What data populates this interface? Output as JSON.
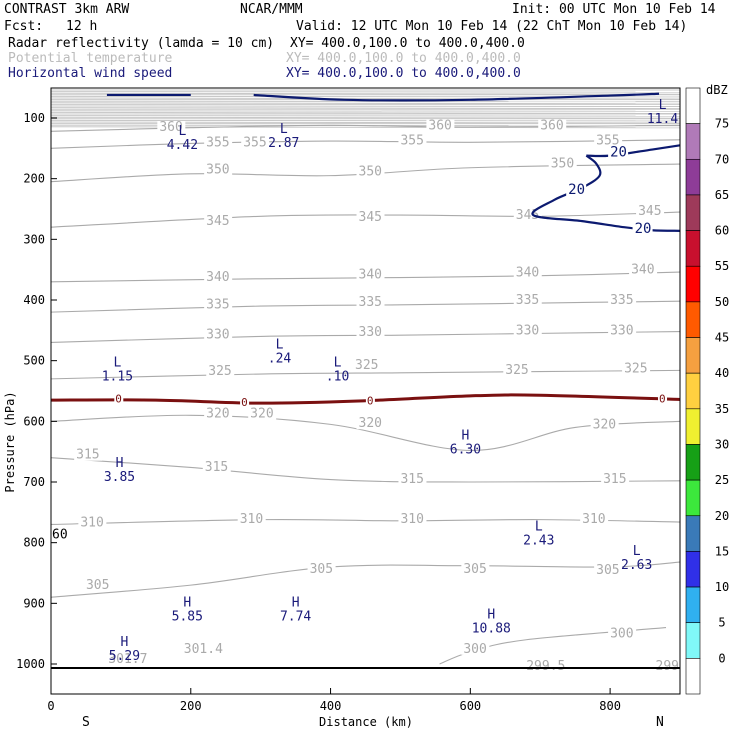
{
  "header": {
    "model": "CONTRAST  3km ARW",
    "center": "NCAR/MMM",
    "init": "Init: 00 UTC Mon 10 Feb 14",
    "fcst_label": "Fcst:",
    "fcst_value": "12 h",
    "valid": "Valid: 12 UTC Mon 10 Feb 14 (22 ChT Mon 10 Feb 14)"
  },
  "fields": [
    {
      "name": "Radar reflectivity (lamda = 10 cm)",
      "xy": "XY= 400.0,100.0 to 400.0,400.0",
      "color": "#000000"
    },
    {
      "name": "Potential temperature",
      "xy": "XY= 400.0,100.0 to 400.0,400.0",
      "color": "#bbbbbb"
    },
    {
      "name": "Horizontal wind speed",
      "xy": "XY= 400.0,100.0 to 400.0,400.0",
      "color": "#1a1a7a"
    }
  ],
  "colors": {
    "theta": "#aaaaaa",
    "wind": "#0c1a70",
    "zeroline": "#7a1010",
    "extrema": "#1a1a7a"
  },
  "chart_data": {
    "type": "contour_cross_section",
    "xlabel": "Distance (km)",
    "ylabel": "Pressure (hPa)",
    "xlim": [
      0,
      900
    ],
    "ylim": [
      1040,
      50
    ],
    "x_ticks": [
      0,
      200,
      400,
      600,
      800
    ],
    "y_ticks": [
      100,
      200,
      300,
      400,
      500,
      600,
      700,
      800,
      900,
      1000
    ],
    "endpoint_left": "S",
    "endpoint_right": "N",
    "colorbar": {
      "title": "dBZ",
      "levels": [
        75,
        70,
        65,
        60,
        55,
        50,
        45,
        40,
        35,
        30,
        25,
        20,
        15,
        10,
        5,
        0
      ],
      "colors": [
        "#ffffff",
        "#b07ab8",
        "#8e3c98",
        "#9e3a5a",
        "#c8102e",
        "#ff0000",
        "#ff5a00",
        "#f5a040",
        "#ffd040",
        "#f0f030",
        "#16a016",
        "#3ce83c",
        "#3a7ab8",
        "#3030e8",
        "#30b0f0",
        "#80f8f8",
        "#ffffff"
      ]
    },
    "theta_contours": [
      {
        "value": "300",
        "points": [
          [
            556,
            1000
          ],
          [
            600,
            980
          ],
          [
            680,
            960
          ],
          [
            880,
            940
          ]
        ]
      },
      {
        "value": "305",
        "points": [
          [
            0,
            890
          ],
          [
            200,
            870
          ],
          [
            400,
            840
          ],
          [
            600,
            838
          ],
          [
            800,
            840
          ],
          [
            900,
            832
          ]
        ]
      },
      {
        "value": "310",
        "points": [
          [
            0,
            770
          ],
          [
            300,
            762
          ],
          [
            500,
            764
          ],
          [
            700,
            762
          ],
          [
            900,
            766
          ]
        ]
      },
      {
        "value": "315",
        "points": [
          [
            0,
            660
          ],
          [
            200,
            676
          ],
          [
            400,
            696
          ],
          [
            600,
            700
          ],
          [
            900,
            698
          ]
        ]
      },
      {
        "value": "320",
        "points": [
          [
            0,
            600
          ],
          [
            200,
            590
          ],
          [
            400,
            605
          ],
          [
            600,
            648
          ],
          [
            750,
            610
          ],
          [
            900,
            600
          ]
        ]
      },
      {
        "value": "325",
        "points": [
          [
            0,
            530
          ],
          [
            300,
            522
          ],
          [
            500,
            520
          ],
          [
            700,
            518
          ],
          [
            900,
            516
          ]
        ]
      },
      {
        "value": "330",
        "points": [
          [
            0,
            470
          ],
          [
            300,
            460
          ],
          [
            500,
            458
          ],
          [
            700,
            455
          ],
          [
            900,
            452
          ]
        ]
      },
      {
        "value": "335",
        "points": [
          [
            0,
            420
          ],
          [
            300,
            410
          ],
          [
            500,
            408
          ],
          [
            700,
            405
          ],
          [
            900,
            402
          ]
        ]
      },
      {
        "value": "340",
        "points": [
          [
            0,
            370
          ],
          [
            300,
            365
          ],
          [
            500,
            363
          ],
          [
            700,
            360
          ],
          [
            900,
            354
          ]
        ]
      },
      {
        "value": "345",
        "points": [
          [
            0,
            280
          ],
          [
            300,
            262
          ],
          [
            500,
            260
          ],
          [
            700,
            262
          ],
          [
            900,
            255
          ]
        ]
      },
      {
        "value": "350",
        "points": [
          [
            0,
            205
          ],
          [
            200,
            192
          ],
          [
            400,
            195
          ],
          [
            600,
            182
          ],
          [
            900,
            176
          ]
        ]
      },
      {
        "value": "355",
        "points": [
          [
            0,
            150
          ],
          [
            200,
            142
          ],
          [
            400,
            138
          ],
          [
            600,
            140
          ],
          [
            900,
            136
          ]
        ]
      },
      {
        "value": "360",
        "points": [
          [
            0,
            122
          ],
          [
            200,
            116
          ],
          [
            400,
            112
          ],
          [
            600,
            115
          ],
          [
            900,
            112
          ]
        ]
      }
    ],
    "theta_labels": [
      {
        "value": "300",
        "x": 590,
        "p": 980
      },
      {
        "value": "300",
        "x": 800,
        "p": 955
      },
      {
        "value": "301.4",
        "x": 190,
        "p": 980
      },
      {
        "value": "299.5",
        "x": 680,
        "p": 1008
      },
      {
        "value": "299",
        "x": 865,
        "p": 1008
      },
      {
        "value": "301.7",
        "x": 82,
        "p": 997
      },
      {
        "value": "305",
        "x": 50,
        "p": 875
      },
      {
        "value": "305",
        "x": 370,
        "p": 848
      },
      {
        "value": "305",
        "x": 590,
        "p": 848
      },
      {
        "value": "305",
        "x": 780,
        "p": 850
      },
      {
        "value": "310",
        "x": 42,
        "p": 772
      },
      {
        "value": "310",
        "x": 270,
        "p": 766
      },
      {
        "value": "310",
        "x": 500,
        "p": 766
      },
      {
        "value": "310",
        "x": 760,
        "p": 766
      },
      {
        "value": "315",
        "x": 36,
        "p": 660
      },
      {
        "value": "315",
        "x": 220,
        "p": 680
      },
      {
        "value": "315",
        "x": 500,
        "p": 700
      },
      {
        "value": "315",
        "x": 790,
        "p": 700
      },
      {
        "value": "320",
        "x": 222,
        "p": 592
      },
      {
        "value": "320",
        "x": 285,
        "p": 592
      },
      {
        "value": "320",
        "x": 440,
        "p": 608
      },
      {
        "value": "320",
        "x": 775,
        "p": 610
      },
      {
        "value": "325",
        "x": 225,
        "p": 522
      },
      {
        "value": "325",
        "x": 435,
        "p": 512
      },
      {
        "value": "325",
        "x": 650,
        "p": 520
      },
      {
        "value": "325",
        "x": 820,
        "p": 518
      },
      {
        "value": "330",
        "x": 222,
        "p": 462
      },
      {
        "value": "330",
        "x": 440,
        "p": 458
      },
      {
        "value": "330",
        "x": 665,
        "p": 455
      },
      {
        "value": "330",
        "x": 800,
        "p": 455
      },
      {
        "value": "335",
        "x": 222,
        "p": 412
      },
      {
        "value": "335",
        "x": 440,
        "p": 408
      },
      {
        "value": "335",
        "x": 665,
        "p": 405
      },
      {
        "value": "335",
        "x": 800,
        "p": 405
      },
      {
        "value": "340",
        "x": 222,
        "p": 367
      },
      {
        "value": "340",
        "x": 440,
        "p": 363
      },
      {
        "value": "340",
        "x": 665,
        "p": 360
      },
      {
        "value": "340",
        "x": 830,
        "p": 355
      },
      {
        "value": "345",
        "x": 222,
        "p": 275
      },
      {
        "value": "345",
        "x": 440,
        "p": 268
      },
      {
        "value": "345",
        "x": 665,
        "p": 265
      },
      {
        "value": "345",
        "x": 840,
        "p": 258
      },
      {
        "value": "350",
        "x": 222,
        "p": 190
      },
      {
        "value": "350",
        "x": 440,
        "p": 193
      },
      {
        "value": "350",
        "x": 715,
        "p": 180
      },
      {
        "value": "355",
        "x": 222,
        "p": 145
      },
      {
        "value": "355",
        "x": 275,
        "p": 145
      },
      {
        "value": "355",
        "x": 500,
        "p": 142
      },
      {
        "value": "355",
        "x": 780,
        "p": 142
      },
      {
        "value": "360",
        "x": 155,
        "p": 120
      },
      {
        "value": "360",
        "x": 540,
        "p": 117
      },
      {
        "value": "360",
        "x": 700,
        "p": 117
      }
    ],
    "wind_contours": [
      {
        "value": "20",
        "points": [
          [
            80,
            62
          ],
          [
            200,
            62
          ]
        ]
      },
      {
        "value": "20",
        "points": [
          [
            290,
            62
          ],
          [
            420,
            70
          ],
          [
            600,
            70
          ],
          [
            800,
            63
          ],
          [
            870,
            60
          ]
        ]
      },
      {
        "value": "20",
        "points": [
          [
            766,
            162
          ],
          [
            800,
            162
          ],
          [
            860,
            152
          ],
          [
            900,
            145
          ]
        ]
      },
      {
        "value": "20",
        "points": [
          [
            766,
            162
          ],
          [
            780,
            175
          ],
          [
            785,
            195
          ],
          [
            760,
            215
          ],
          [
            720,
            235
          ],
          [
            690,
            260
          ],
          [
            760,
            270
          ],
          [
            820,
            280
          ],
          [
            860,
            285
          ],
          [
            900,
            286
          ]
        ]
      }
    ],
    "wind_labels": [
      {
        "value": "20",
        "x": 800,
        "p": 160
      },
      {
        "value": "20",
        "x": 740,
        "p": 222
      },
      {
        "value": "20",
        "x": 835,
        "p": 286
      }
    ],
    "zero_line": {
      "value": "0",
      "points": [
        [
          0,
          565
        ],
        [
          150,
          565
        ],
        [
          300,
          570
        ],
        [
          450,
          566
        ],
        [
          600,
          558
        ],
        [
          700,
          557
        ],
        [
          900,
          564
        ]
      ]
    },
    "zero_labels": [
      {
        "value": "0",
        "x": 92,
        "p": 562
      },
      {
        "value": "0",
        "x": 272,
        "p": 568
      },
      {
        "value": "0",
        "x": 452,
        "p": 566
      },
      {
        "value": "0",
        "x": 870,
        "p": 562
      }
    ],
    "extrema": [
      {
        "type": "L",
        "value": "4.42",
        "x": 188,
        "p": 128
      },
      {
        "type": "L",
        "value": "2.87",
        "x": 333,
        "p": 125
      },
      {
        "type": "L",
        "value": "11.4",
        "x": 875,
        "p": 85
      },
      {
        "type": "L",
        "value": ".24",
        "x": 327,
        "p": 480
      },
      {
        "type": "L",
        "value": "1.15",
        "x": 95,
        "p": 510
      },
      {
        "type": "L",
        "value": ".10",
        "x": 410,
        "p": 510
      },
      {
        "type": "H",
        "value": "6.30",
        "x": 593,
        "p": 630
      },
      {
        "type": "H",
        "value": "3.85",
        "x": 98,
        "p": 675
      },
      {
        "type": "L",
        "value": "2.43",
        "x": 698,
        "p": 780
      },
      {
        "type": "L",
        "value": "2.63",
        "x": 838,
        "p": 820
      },
      {
        "type": "H",
        "value": "5.85",
        "x": 195,
        "p": 905
      },
      {
        "type": "H",
        "value": "7.74",
        "x": 350,
        "p": 905
      },
      {
        "type": "H",
        "value": "10.88",
        "x": 630,
        "p": 925
      },
      {
        "type": "H",
        "value": "5.29",
        "x": 105,
        "p": 970
      }
    ],
    "edge_label": {
      "value": "60",
      "x": 3,
      "p": 800
    }
  }
}
